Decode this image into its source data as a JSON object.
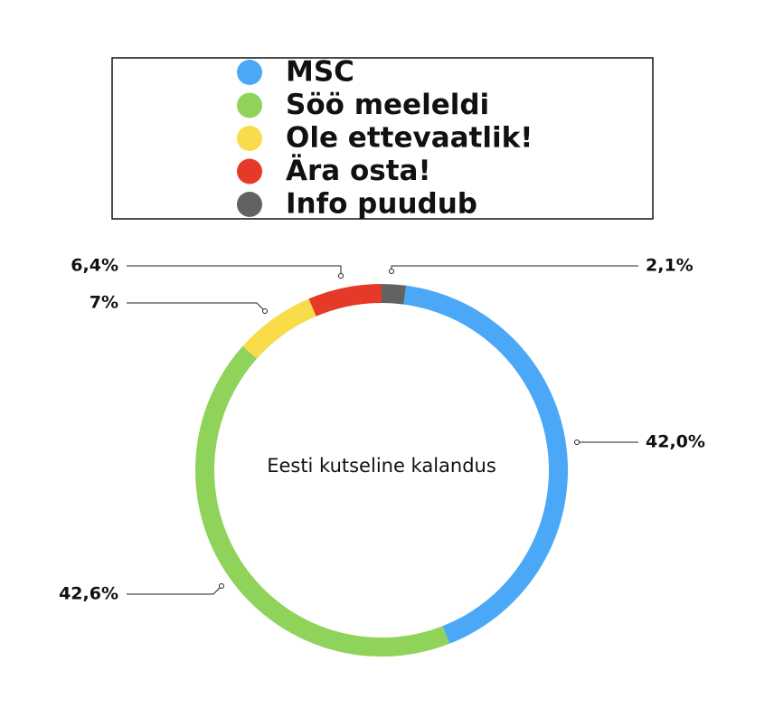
{
  "chart_data": {
    "type": "donut",
    "title": "Eesti kutseline kalandus",
    "categories": [
      "MSC",
      "Söö meeleldi",
      "Ole ettevaatlik!",
      "Ära osta!",
      "Info puudub"
    ],
    "values": [
      42.0,
      42.6,
      7,
      6.4,
      2.1
    ],
    "value_labels": [
      "42,0%",
      "42,6%",
      "7%",
      "6,4%",
      "2,1%"
    ],
    "colors": [
      "#4aa8f7",
      "#8fd35a",
      "#f9dc4a",
      "#e53a27",
      "#626262"
    ]
  }
}
